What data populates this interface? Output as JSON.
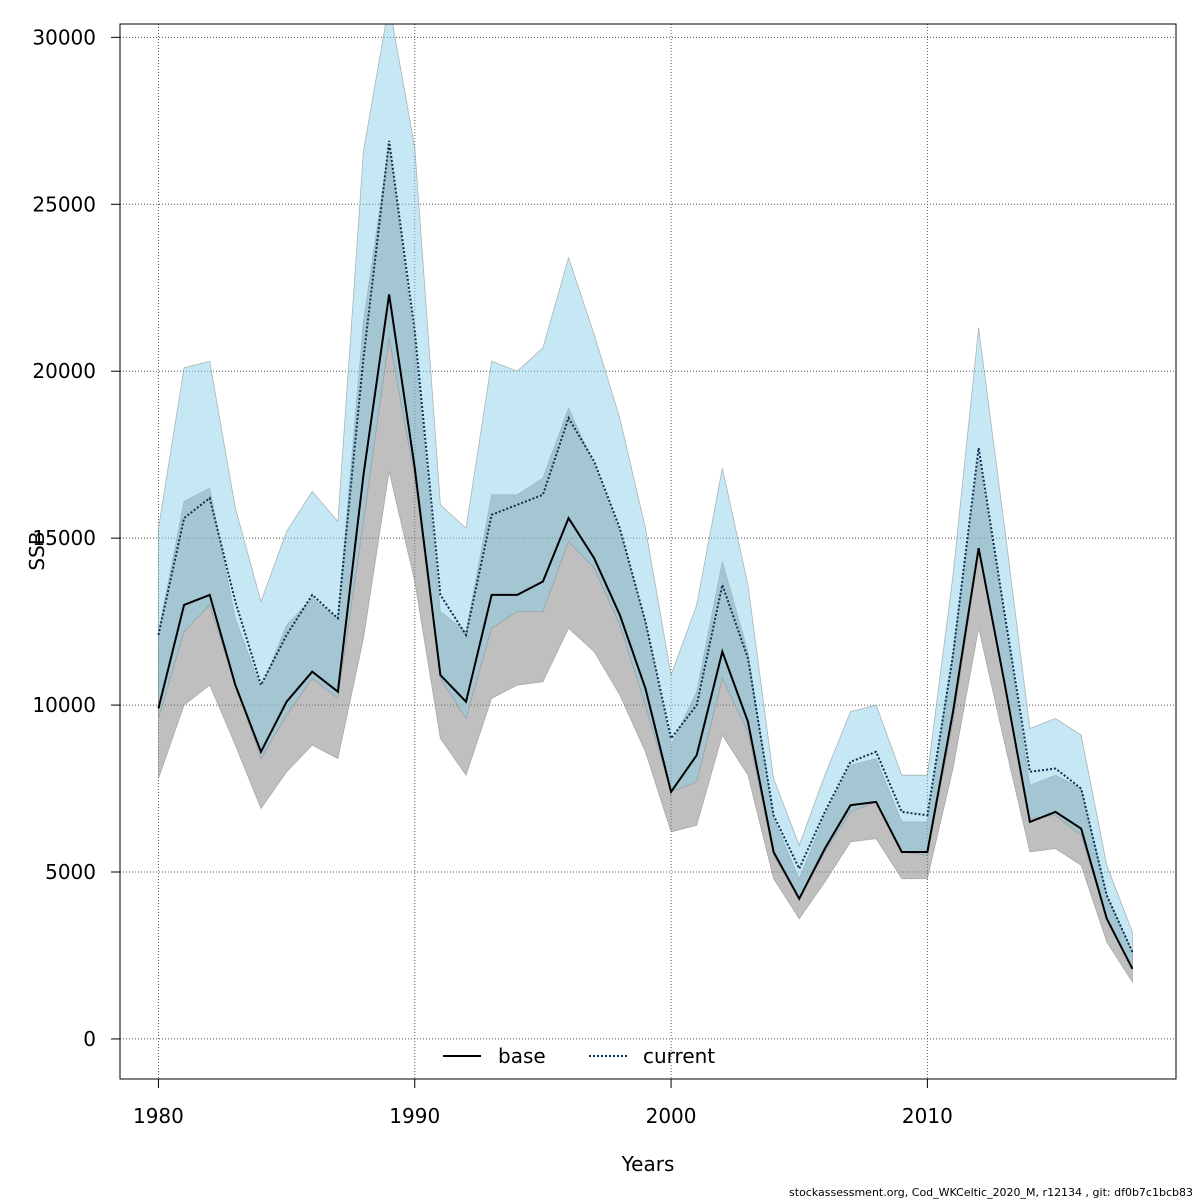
{
  "chart_data": {
    "type": "line",
    "title": "",
    "xlabel": "Years",
    "ylabel": "SSB",
    "xlim": [
      1978.5,
      2019.7
    ],
    "ylim": [
      -1200,
      30400
    ],
    "x_ticks": [
      1980,
      1990,
      2000,
      2010
    ],
    "y_ticks": [
      0,
      5000,
      10000,
      15000,
      20000,
      25000,
      30000
    ],
    "grid": true,
    "legend_position": "bottom-center",
    "colors": {
      "base_line": "#000000",
      "base_band": "#808080",
      "current_line": "#0a3050",
      "current_band": "#87ceeb",
      "grid": "#555555"
    },
    "x": [
      1980,
      1981,
      1982,
      1983,
      1984,
      1985,
      1986,
      1987,
      1988,
      1989,
      1990,
      1991,
      1992,
      1993,
      1994,
      1995,
      1996,
      1997,
      1998,
      1999,
      2000,
      2001,
      2002,
      2003,
      2004,
      2005,
      2006,
      2007,
      2008,
      2009,
      2010,
      2011,
      2012,
      2013,
      2014,
      2015,
      2016,
      2017,
      2018
    ],
    "series": [
      {
        "name": "base",
        "line_style": "solid",
        "values": [
          9900,
          13000,
          13300,
          10600,
          8600,
          10100,
          11000,
          10400,
          16900,
          22300,
          17100,
          10900,
          10100,
          13300,
          13300,
          13700,
          15600,
          14400,
          12700,
          10500,
          7400,
          8500,
          11600,
          9500,
          5600,
          4200,
          5700,
          7000,
          7100,
          5600,
          5600,
          9800,
          14700,
          10700,
          6500,
          6800,
          6300,
          3600,
          2100
        ],
        "lower": [
          7800,
          10000,
          10600,
          8800,
          6900,
          8000,
          8800,
          8400,
          12000,
          17000,
          13700,
          9000,
          7900,
          10200,
          10600,
          10700,
          12300,
          11600,
          10300,
          8600,
          6200,
          6400,
          9100,
          7900,
          4800,
          3600,
          4700,
          5900,
          6000,
          4800,
          4800,
          8100,
          12300,
          8900,
          5600,
          5700,
          5200,
          2900,
          1700
        ],
        "upper": [
          12200,
          16100,
          16500,
          12600,
          10500,
          12400,
          13200,
          12600,
          21500,
          26800,
          20800,
          12800,
          12200,
          16300,
          16300,
          16800,
          18900,
          17200,
          15200,
          12500,
          8800,
          10400,
          14300,
          11600,
          6600,
          4800,
          6700,
          8200,
          8400,
          6500,
          6500,
          11600,
          17400,
          12700,
          7600,
          7900,
          7500,
          4300,
          2600
        ]
      },
      {
        "name": "current",
        "line_style": "dotted",
        "values": [
          12100,
          15600,
          16200,
          13100,
          10600,
          12100,
          13300,
          12600,
          20400,
          26900,
          21200,
          13300,
          12100,
          15700,
          16000,
          16300,
          18600,
          17300,
          15300,
          12500,
          9000,
          10000,
          13600,
          11400,
          6700,
          5100,
          6800,
          8300,
          8600,
          6800,
          6700,
          11500,
          17700,
          12800,
          8000,
          8100,
          7500,
          4300,
          2600
        ],
        "lower": [
          9600,
          12200,
          13000,
          10600,
          8400,
          9700,
          10800,
          10200,
          15500,
          21000,
          16800,
          10800,
          9600,
          12300,
          12800,
          12800,
          14900,
          14100,
          12400,
          10000,
          7400,
          7700,
          10800,
          9200,
          5500,
          4200,
          5600,
          6800,
          7100,
          5600,
          5500,
          9500,
          14600,
          10700,
          6600,
          6700,
          6100,
          3600,
          2100
        ],
        "upper": [
          15300,
          20100,
          20300,
          15900,
          13100,
          15200,
          16400,
          15500,
          26600,
          31000,
          26700,
          16000,
          15300,
          20300,
          20000,
          20700,
          23400,
          21100,
          18600,
          15300,
          10900,
          13000,
          17100,
          13600,
          7800,
          5800,
          7900,
          9800,
          10000,
          7900,
          7900,
          13900,
          21300,
          15400,
          9300,
          9600,
          9100,
          5200,
          3200
        ]
      }
    ],
    "legend": [
      "base",
      "current"
    ],
    "footer": "stockassessment.org, Cod_WKCeltic_2020_M, r12134 , git: df0b7c1bcb83"
  }
}
